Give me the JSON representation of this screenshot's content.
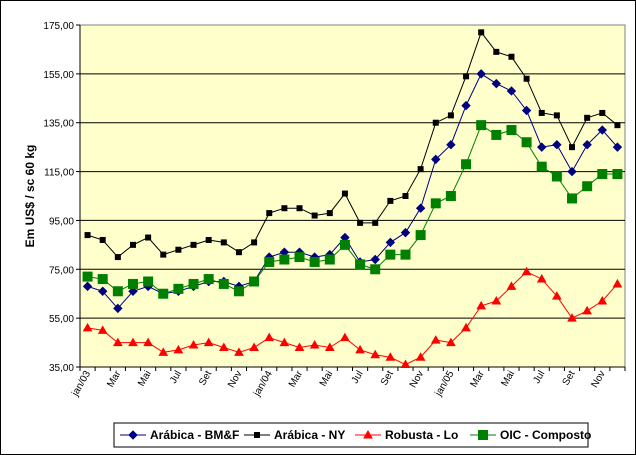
{
  "chart_data": {
    "type": "line",
    "ylabel": "Em US$ / sc 60 kg",
    "ylim": [
      35,
      175
    ],
    "yticks": [
      "35,00",
      "55,00",
      "75,00",
      "95,00",
      "115,00",
      "135,00",
      "155,00",
      "175,00"
    ],
    "grid": "horizontal",
    "legend_position": "bottom",
    "categories": [
      "jan/03",
      "",
      "Mar",
      "",
      "Mai",
      "",
      "Jul",
      "",
      "Set",
      "",
      "Nov",
      "",
      "jan/04",
      "",
      "Mar",
      "",
      "Mai",
      "",
      "Jul",
      "",
      "Set",
      "",
      "Nov",
      "",
      "jan/05",
      "",
      "Mar",
      "",
      "Mai",
      "",
      "Jul",
      "",
      "Set",
      "",
      "Nov",
      ""
    ],
    "series": [
      {
        "name": "Arábica - BM&F",
        "color": "#000080",
        "marker": "diamond",
        "values": [
          68,
          66,
          59,
          66,
          68,
          65,
          66,
          68,
          70,
          70,
          68,
          70,
          80,
          82,
          82,
          80,
          81,
          88,
          78,
          79,
          86,
          90,
          100,
          120,
          126,
          142,
          155,
          151,
          148,
          140,
          125,
          126,
          115,
          126,
          132,
          125
        ]
      },
      {
        "name": "Arábica - NY",
        "color": "#000000",
        "marker": "square",
        "values": [
          89,
          87,
          80,
          85,
          88,
          81,
          83,
          85,
          87,
          86,
          82,
          86,
          98,
          100,
          100,
          97,
          98,
          106,
          94,
          94,
          103,
          105,
          116,
          135,
          138,
          154,
          172,
          164,
          162,
          153,
          139,
          138,
          125,
          137,
          139,
          134
        ]
      },
      {
        "name": "Robusta - Lo",
        "color": "#ff0000",
        "marker": "triangle",
        "values": [
          51,
          50,
          45,
          45,
          45,
          41,
          42,
          44,
          45,
          43,
          41,
          43,
          47,
          45,
          43,
          44,
          43,
          47,
          42,
          40,
          39,
          36,
          39,
          46,
          45,
          51,
          60,
          62,
          68,
          74,
          71,
          64,
          55,
          58,
          62,
          69
        ]
      },
      {
        "name": "OIC - Composto",
        "color": "#008000",
        "marker": "square",
        "values": [
          72,
          71,
          66,
          69,
          70,
          65,
          67,
          69,
          71,
          69,
          66,
          70,
          78,
          79,
          80,
          78,
          79,
          85,
          77,
          75,
          81,
          81,
          89,
          102,
          105,
          118,
          134,
          130,
          132,
          127,
          117,
          113,
          104,
          109,
          114,
          114
        ]
      }
    ]
  }
}
